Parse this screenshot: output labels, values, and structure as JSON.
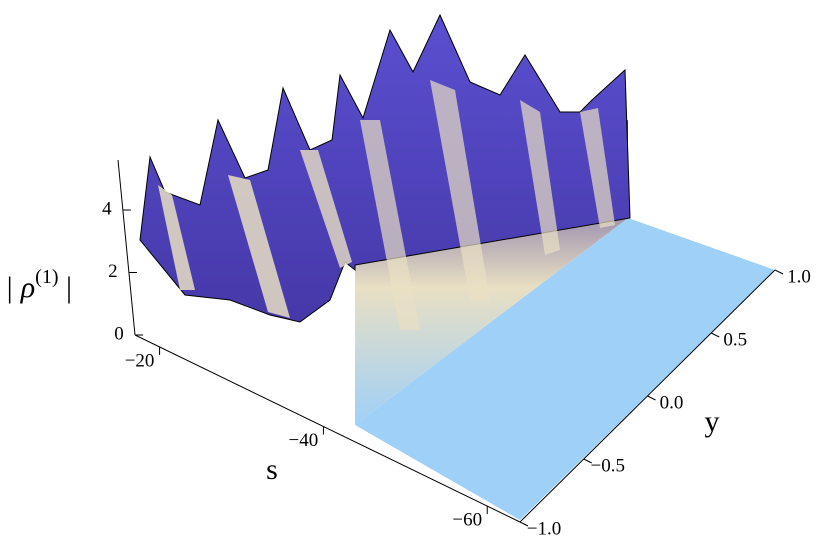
{
  "chart_data": {
    "type": "surface3d",
    "xlabel": "s",
    "ylabel": "y",
    "zlabel": {
      "base": "| ρ",
      "sup": "(1)",
      "end": " |"
    },
    "xlim": [
      -17,
      -64
    ],
    "xticks": [
      {
        "value": -20,
        "label": "−20"
      },
      {
        "value": -40,
        "label": "−40"
      },
      {
        "value": -60,
        "label": "−60"
      }
    ],
    "ylim": [
      -1,
      1
    ],
    "yticks": [
      {
        "value": -1,
        "label": "−1.0"
      },
      {
        "value": -0.5,
        "label": "−0.5"
      },
      {
        "value": 0,
        "label": "0.0"
      },
      0.5,
      {
        "value": 1,
        "label": "1.0"
      }
    ],
    "zlim": [
      0,
      5.6
    ],
    "zticks": [
      0,
      2,
      4
    ],
    "surface_color": "#4638a8",
    "floor_color": "#9fd0f8"
  }
}
